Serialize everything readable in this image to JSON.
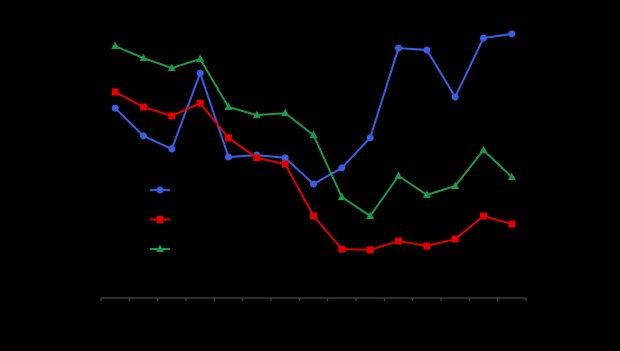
{
  "chart_data": {
    "type": "line",
    "categories": [
      null,
      null,
      null,
      null,
      null,
      null,
      null,
      null,
      null,
      null,
      null,
      null,
      null,
      null,
      null
    ],
    "series": [
      {
        "color": "#3b5ee6",
        "marker": "circle",
        "values": [
          68.3,
          58.3,
          53.6,
          80.9,
          50.7,
          51.4,
          50.4,
          41.0,
          46.8,
          57.6,
          89.9,
          89.2,
          72.3,
          93.5,
          95.0
        ]
      },
      {
        "color": "#e00000",
        "marker": "square",
        "values": [
          74.1,
          68.7,
          65.5,
          70.1,
          57.6,
          50.4,
          48.2,
          29.5,
          17.6,
          17.3,
          20.5,
          18.7,
          21.2,
          29.5,
          26.6
        ]
      },
      {
        "color": "#1a9a4a",
        "marker": "triangle",
        "values": [
          90.6,
          86.3,
          82.7,
          86.0,
          68.7,
          65.8,
          66.5,
          58.6,
          36.3,
          29.5,
          43.9,
          37.1,
          40.3,
          53.2,
          43.5
        ]
      }
    ],
    "ylim": [
      0,
      100
    ]
  }
}
